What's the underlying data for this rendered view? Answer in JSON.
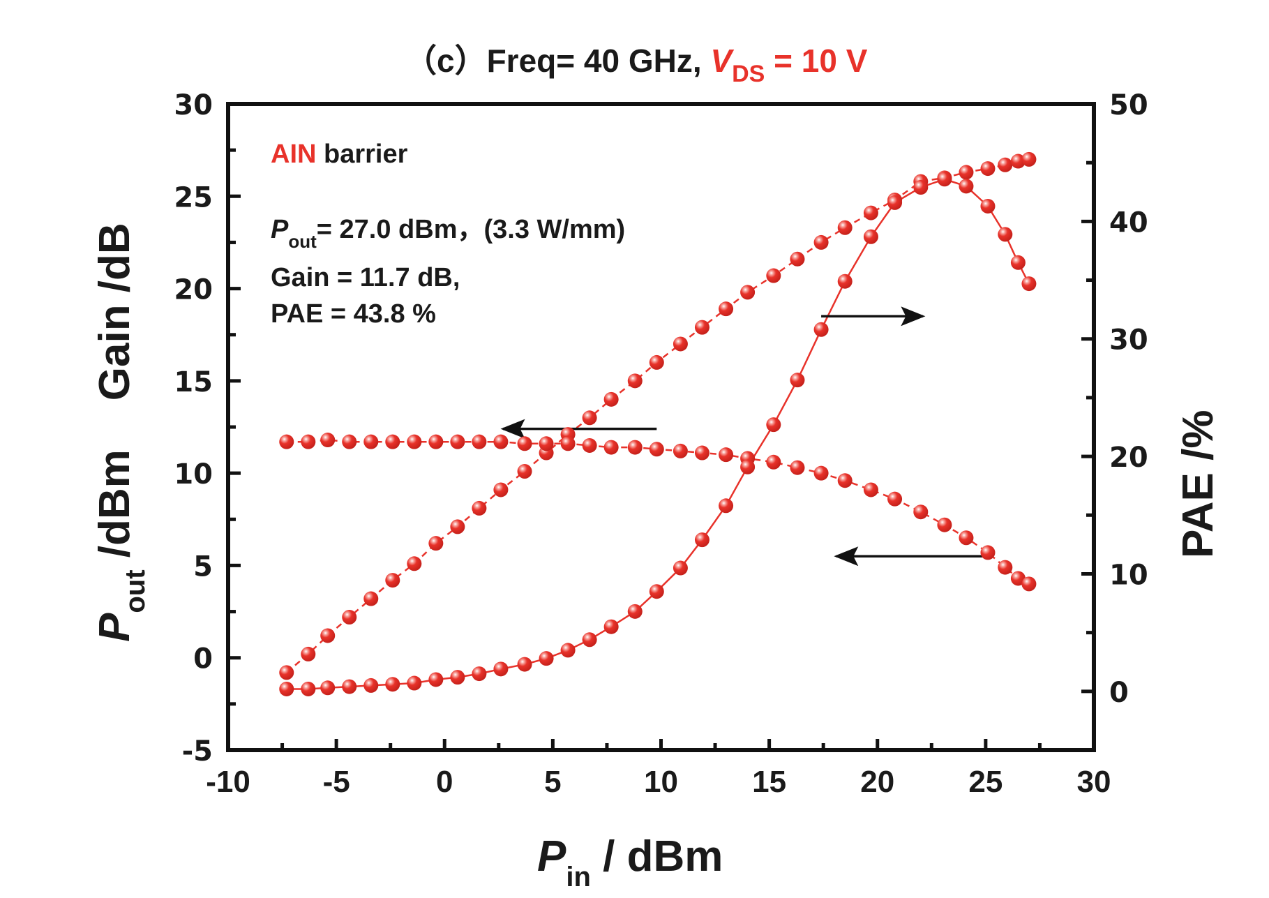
{
  "chart_data": {
    "type": "line",
    "title": {
      "prefix": "（c）Freq= 40 GHz, ",
      "v": "V",
      "sub": "DS",
      "suffix": " = 10 V"
    },
    "xlabel": {
      "main": "P",
      "sub": "in",
      "rest": " / dBm"
    },
    "ylabel_left": {
      "main": "P",
      "sub": "out",
      "rest": " /dBm",
      "second": "Gain /dB"
    },
    "ylabel_right": "PAE /%",
    "xlim": [
      -10,
      30
    ],
    "ylim_left": [
      -5,
      30
    ],
    "ylim_right": [
      -5,
      50
    ],
    "x_ticks": [
      "-10",
      "-5",
      "0",
      "5",
      "10",
      "15",
      "20",
      "25",
      "30"
    ],
    "x_tick_values": [
      -10,
      -5,
      0,
      5,
      10,
      15,
      20,
      25,
      30
    ],
    "y_left_ticks": [
      "-5",
      "0",
      "5",
      "10",
      "15",
      "20",
      "25",
      "30"
    ],
    "y_left_tick_values": [
      -5,
      0,
      5,
      10,
      15,
      20,
      25,
      30
    ],
    "y_right_ticks": [
      "0",
      "10",
      "20",
      "30",
      "40",
      "50"
    ],
    "y_right_tick_values": [
      0,
      10,
      20,
      30,
      40,
      50
    ],
    "grid": false,
    "marker_color": "#e8322a",
    "x": [
      -7.3,
      -6.3,
      -5.4,
      -4.4,
      -3.4,
      -2.4,
      -1.4,
      -0.4,
      0.6,
      1.6,
      2.6,
      3.7,
      4.7,
      5.7,
      6.7,
      7.7,
      8.8,
      9.8,
      10.9,
      11.9,
      13.0,
      14.0,
      15.2,
      16.3,
      17.4,
      18.5,
      19.7,
      20.8,
      22.0,
      23.1,
      24.1,
      25.1,
      25.9,
      26.5,
      27.0
    ],
    "series": [
      {
        "name": "Pout",
        "axis": "left",
        "line_style": "dashed",
        "values": [
          -0.8,
          0.2,
          1.2,
          2.2,
          3.2,
          4.2,
          5.1,
          6.2,
          7.1,
          8.1,
          9.1,
          10.1,
          11.1,
          12.1,
          13.0,
          14.0,
          15.0,
          16.0,
          17.0,
          17.9,
          18.9,
          19.8,
          20.7,
          21.6,
          22.5,
          23.3,
          24.1,
          24.8,
          25.8,
          26.0,
          26.3,
          26.5,
          26.7,
          26.9,
          27.0
        ]
      },
      {
        "name": "Gain",
        "axis": "left",
        "line_style": "dashed",
        "values": [
          11.7,
          11.7,
          11.8,
          11.7,
          11.7,
          11.7,
          11.7,
          11.7,
          11.7,
          11.7,
          11.7,
          11.6,
          11.6,
          11.6,
          11.5,
          11.4,
          11.4,
          11.3,
          11.2,
          11.1,
          11.0,
          10.8,
          10.6,
          10.3,
          10.0,
          9.6,
          9.1,
          8.6,
          7.9,
          7.2,
          6.5,
          5.7,
          4.9,
          4.3,
          4.0
        ]
      },
      {
        "name": "PAE",
        "axis": "right",
        "line_style": "solid",
        "values": [
          0.2,
          0.2,
          0.3,
          0.4,
          0.5,
          0.6,
          0.7,
          1.0,
          1.2,
          1.5,
          1.9,
          2.3,
          2.8,
          3.5,
          4.4,
          5.5,
          6.8,
          8.5,
          10.5,
          12.9,
          15.8,
          19.1,
          22.7,
          26.5,
          30.8,
          34.9,
          38.7,
          41.6,
          42.9,
          43.6,
          43.0,
          41.3,
          38.9,
          36.5,
          34.7
        ]
      }
    ],
    "annotations": {
      "material_red": "AIN",
      "material_black": " barrier",
      "pout_symbol": "P",
      "pout_sub": "out",
      "pout_value": "= 27.0 dBm，(3.3 W/mm)",
      "gain_line": "Gain =  11.7 dB,",
      "pae_line": "PAE =  43.8 %"
    },
    "arrows": [
      {
        "series": "Gain",
        "direction": "left",
        "from_x": 9.8,
        "to_x": 2.7,
        "y_left": 12.4
      },
      {
        "series": "PAE",
        "direction": "right",
        "from_x": 17.4,
        "to_x": 22.1,
        "y_left": 18.5
      },
      {
        "series": "Gain",
        "direction": "left",
        "from_x": 25.0,
        "to_x": 18.1,
        "y_left": 5.5
      }
    ]
  }
}
